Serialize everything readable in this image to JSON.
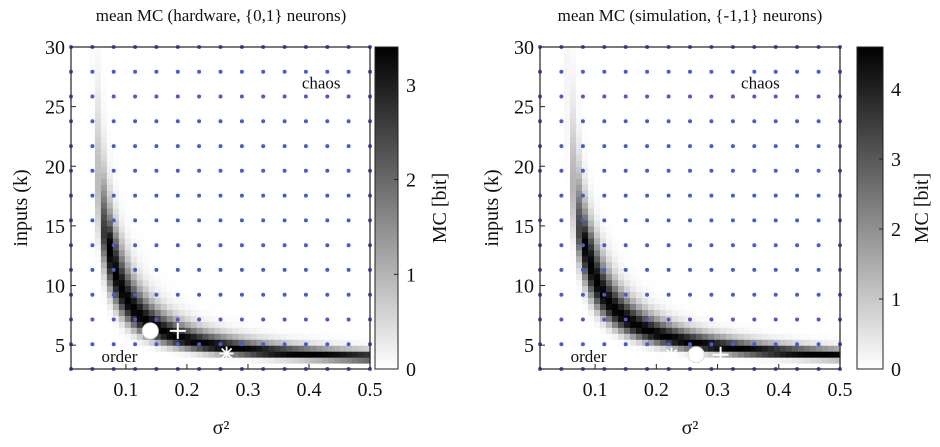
{
  "chart_data": [
    {
      "type": "heatmap",
      "title": "mean MC (hardware, {0,1} neurons)",
      "xlabel": "σ²",
      "ylabel": "inputs (k)",
      "colorbar_label": "MC [bit]",
      "xlim": [
        0.01,
        0.5
      ],
      "ylim": [
        3,
        30
      ],
      "zlim": [
        0,
        3.4
      ],
      "x_ticks": [
        "0.1",
        "0.2",
        "0.3",
        "0.4",
        "0.5"
      ],
      "y_ticks": [
        "5",
        "10",
        "15",
        "20",
        "25",
        "30"
      ],
      "colorbar_ticks": [
        "0",
        "1",
        "2",
        "3"
      ],
      "grid_points_color": "#4a5bd0",
      "colormap": [
        "#ffffff",
        "#000000"
      ],
      "annotations": [
        {
          "text": "chaos",
          "x": 0.42,
          "y": 26.5
        },
        {
          "text": "order",
          "x": 0.06,
          "y": 3.6
        }
      ],
      "markers": [
        {
          "symbol": "circle",
          "x": 0.14,
          "y": 6.2
        },
        {
          "symbol": "plus",
          "x": 0.185,
          "y": 6.2
        },
        {
          "symbol": "asterisk",
          "x": 0.265,
          "y": 4.3
        }
      ],
      "ridge": {
        "x0": 0.035,
        "y0": 3.2,
        "a": 0.38,
        "width": 0.11,
        "peak": 3.4
      }
    },
    {
      "type": "heatmap",
      "title": "mean MC (simulation, {-1,1} neurons)",
      "xlabel": "σ²",
      "ylabel": "inputs (k)",
      "colorbar_label": "MC [bit]",
      "xlim": [
        0.01,
        0.5
      ],
      "ylim": [
        3,
        30
      ],
      "zlim": [
        0,
        4.6
      ],
      "x_ticks": [
        "0.1",
        "0.2",
        "0.3",
        "0.4",
        "0.5"
      ],
      "y_ticks": [
        "5",
        "10",
        "15",
        "20",
        "25",
        "30"
      ],
      "colorbar_ticks": [
        "0",
        "1",
        "2",
        "3",
        "4"
      ],
      "grid_points_color": "#4a5bd0",
      "colormap": [
        "#ffffff",
        "#000000"
      ],
      "annotations": [
        {
          "text": "chaos",
          "x": 0.37,
          "y": 26.5
        },
        {
          "text": "order",
          "x": 0.06,
          "y": 3.6
        }
      ],
      "markers": [
        {
          "symbol": "asterisk",
          "x": 0.225,
          "y": 4.2
        },
        {
          "symbol": "circle",
          "x": 0.265,
          "y": 4.2
        },
        {
          "symbol": "plus",
          "x": 0.305,
          "y": 4.2
        }
      ],
      "ridge": {
        "x0": 0.04,
        "y0": 3.2,
        "a": 0.45,
        "width": 0.1,
        "peak": 4.6
      }
    }
  ]
}
